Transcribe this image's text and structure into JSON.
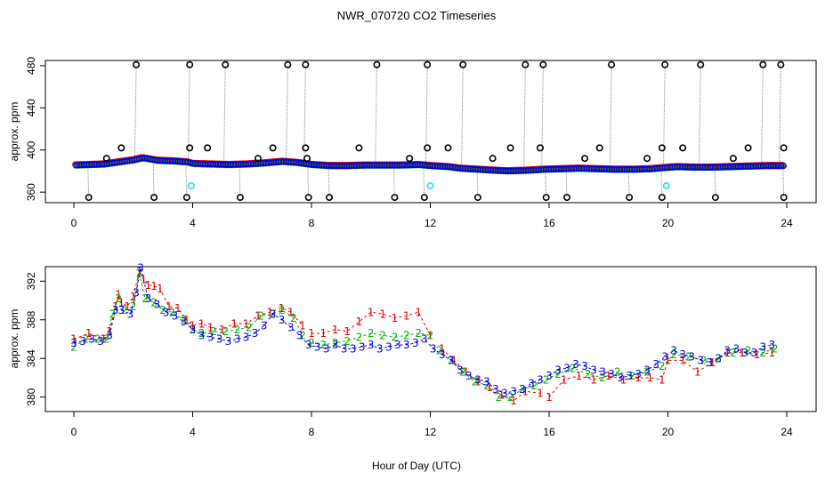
{
  "title": "NWR_070720  CO2 Timeseries",
  "xlabel": "Hour of Day (UTC)",
  "colors": {
    "frame": "#000000",
    "series1": "#e00000",
    "series2": "#00b000",
    "series3": "#0000e0",
    "outlier": "#000000",
    "flagged": "#00e0e0",
    "dropline": "#9a9a9a"
  },
  "chart_data": [
    {
      "type": "scatter",
      "panel": "top",
      "ylabel": "approx. ppm",
      "xlim": [
        0,
        24
      ],
      "ylim": [
        350,
        485
      ],
      "xticks": [
        0,
        4,
        8,
        12,
        16,
        20,
        24
      ],
      "yticks": [
        360,
        400,
        440,
        480
      ],
      "baseline": [
        [
          0.0,
          385.5
        ],
        [
          0.5,
          386
        ],
        [
          1.0,
          386.5
        ],
        [
          1.5,
          388.5
        ],
        [
          2.0,
          390.5
        ],
        [
          2.3,
          392.5
        ],
        [
          2.8,
          390
        ],
        [
          3.3,
          389.5
        ],
        [
          3.8,
          388.5
        ],
        [
          4.0,
          387
        ],
        [
          4.6,
          386.5
        ],
        [
          5.2,
          386
        ],
        [
          5.8,
          386.5
        ],
        [
          6.4,
          387.5
        ],
        [
          7.0,
          389
        ],
        [
          7.5,
          388
        ],
        [
          8.0,
          386
        ],
        [
          8.6,
          385
        ],
        [
          9.2,
          385
        ],
        [
          9.8,
          385.5
        ],
        [
          10.4,
          385.5
        ],
        [
          11.0,
          385.5
        ],
        [
          11.6,
          386
        ],
        [
          12.0,
          385
        ],
        [
          12.6,
          384
        ],
        [
          13.0,
          382.5
        ],
        [
          13.6,
          381.5
        ],
        [
          14.2,
          380.5
        ],
        [
          14.6,
          380
        ],
        [
          15.2,
          380.5
        ],
        [
          15.8,
          381.5
        ],
        [
          16.4,
          382
        ],
        [
          17.0,
          382.5
        ],
        [
          17.6,
          382
        ],
        [
          18.2,
          381.5
        ],
        [
          18.8,
          381.5
        ],
        [
          19.4,
          382
        ],
        [
          19.8,
          383
        ],
        [
          20.3,
          384
        ],
        [
          20.9,
          383.5
        ],
        [
          21.5,
          383.5
        ],
        [
          22.1,
          384
        ],
        [
          22.7,
          384.5
        ],
        [
          23.3,
          385
        ],
        [
          23.8,
          385
        ]
      ],
      "outliers_high": [
        2.1,
        3.9,
        5.1,
        7.2,
        7.8,
        10.2,
        11.9,
        13.1,
        15.2,
        15.8,
        18.1,
        19.9,
        21.1,
        23.2,
        23.8
      ],
      "outlier_high_value": 481,
      "outliers_low": [
        0.5,
        2.7,
        3.8,
        5.6,
        7.9,
        8.6,
        10.8,
        11.8,
        13.6,
        15.9,
        16.6,
        18.7,
        19.8,
        21.6,
        23.9
      ],
      "outlier_low_value": 355,
      "outliers_mid": [
        [
          1.1,
          392
        ],
        [
          1.6,
          402
        ],
        [
          3.9,
          402
        ],
        [
          4.5,
          402
        ],
        [
          6.2,
          392
        ],
        [
          6.7,
          402
        ],
        [
          7.8,
          402
        ],
        [
          7.85,
          392
        ],
        [
          9.6,
          402
        ],
        [
          11.3,
          392
        ],
        [
          11.9,
          402
        ],
        [
          12.6,
          402
        ],
        [
          14.1,
          392
        ],
        [
          14.7,
          402
        ],
        [
          15.7,
          402
        ],
        [
          17.2,
          392
        ],
        [
          17.7,
          402
        ],
        [
          19.3,
          392
        ],
        [
          19.8,
          402
        ],
        [
          20.5,
          402
        ],
        [
          22.2,
          392
        ],
        [
          22.7,
          402
        ],
        [
          23.9,
          402
        ]
      ],
      "flagged": [
        [
          3.95,
          366
        ],
        [
          12.0,
          366
        ],
        [
          19.95,
          366
        ]
      ]
    },
    {
      "type": "scatter",
      "panel": "bottom",
      "ylabel": "approx. ppm",
      "xlim": [
        0,
        24
      ],
      "ylim": [
        378.5,
        393.5
      ],
      "xticks": [
        0,
        4,
        8,
        12,
        16,
        20,
        24
      ],
      "yticks": [
        380,
        384,
        388,
        392
      ],
      "series": [
        {
          "name": "1",
          "marker": "1",
          "color": "series1",
          "gap_after": [
            7.7,
            12.0,
            15.7
          ],
          "x": [
            0.0,
            0.5,
            1.0,
            1.2,
            1.4,
            1.5,
            1.6,
            1.8,
            2.0,
            2.2,
            2.35,
            2.5,
            2.7,
            2.9,
            3.2,
            3.5,
            3.8,
            4.0,
            4.3,
            4.6,
            5.0,
            5.4,
            5.8,
            6.2,
            6.6,
            7.0,
            7.3,
            7.7,
            8.0,
            8.4,
            8.8,
            9.2,
            9.6,
            10.0,
            10.4,
            10.8,
            11.2,
            11.6,
            12.0,
            12.4,
            12.8,
            13.2,
            13.6,
            14.0,
            14.4,
            14.8,
            15.2,
            15.7,
            16.0,
            16.5,
            17.0,
            17.5,
            18.0,
            18.5,
            19.0,
            19.4,
            19.8,
            20.0,
            20.5,
            21.0,
            21.5,
            22.0,
            22.5,
            23.0,
            23.5
          ],
          "y": [
            386.0,
            386.6,
            386.0,
            386.8,
            389.4,
            390.6,
            389.8,
            389.4,
            390.4,
            393.0,
            392.2,
            391.6,
            391.5,
            391.2,
            389.4,
            389.2,
            388.0,
            387.4,
            387.6,
            387.2,
            387.0,
            387.6,
            387.6,
            388.4,
            388.8,
            389.2,
            388.8,
            387.4,
            386.6,
            386.6,
            387.0,
            386.8,
            387.8,
            388.8,
            388.6,
            388.2,
            388.4,
            388.8,
            386.4,
            385.0,
            383.8,
            382.6,
            381.6,
            381.0,
            380.2,
            379.6,
            380.6,
            380.4,
            380.0,
            381.8,
            382.2,
            381.8,
            382.2,
            381.8,
            382.0,
            382.0,
            381.8,
            383.8,
            383.8,
            382.6,
            383.6,
            384.6,
            384.6,
            384.4,
            384.6
          ]
        },
        {
          "name": "2",
          "marker": "2",
          "color": "series2",
          "gap_after": [
            7.7,
            12.0,
            15.7
          ],
          "x": [
            0.0,
            0.4,
            0.8,
            1.1,
            1.3,
            1.5,
            1.7,
            2.0,
            2.2,
            2.4,
            2.7,
            3.0,
            3.3,
            3.7,
            4.0,
            4.3,
            4.7,
            5.1,
            5.5,
            5.9,
            6.3,
            6.7,
            7.0,
            7.4,
            7.7,
            8.0,
            8.4,
            8.8,
            9.2,
            9.6,
            10.0,
            10.4,
            10.8,
            11.2,
            11.6,
            12.0,
            12.3,
            12.7,
            13.1,
            13.5,
            13.9,
            14.3,
            14.7,
            15.1,
            15.5,
            15.9,
            16.3,
            16.8,
            17.3,
            17.8,
            18.3,
            18.8,
            19.3,
            19.8,
            20.2,
            20.7,
            21.2,
            21.7,
            22.2,
            22.7,
            23.2,
            23.6
          ],
          "y": [
            385.2,
            386.0,
            386.0,
            386.0,
            388.6,
            390.2,
            389.0,
            389.4,
            392.8,
            390.2,
            389.8,
            389.0,
            388.8,
            388.0,
            387.0,
            386.6,
            386.8,
            386.8,
            387.0,
            387.2,
            388.4,
            388.6,
            389.0,
            388.2,
            386.4,
            385.6,
            385.4,
            385.6,
            385.8,
            386.2,
            386.6,
            386.4,
            386.2,
            386.4,
            386.6,
            386.4,
            384.8,
            383.8,
            382.6,
            381.6,
            381.2,
            380.0,
            380.0,
            380.8,
            381.2,
            381.8,
            382.4,
            383.0,
            382.4,
            382.0,
            382.6,
            382.2,
            382.6,
            383.2,
            384.4,
            384.2,
            383.8,
            384.0,
            384.6,
            384.8,
            384.6,
            385.0
          ]
        },
        {
          "name": "3",
          "marker": "3",
          "color": "series3",
          "gap_after": [
            7.7,
            12.0,
            15.7
          ],
          "x": [
            0.0,
            0.3,
            0.6,
            0.9,
            1.2,
            1.4,
            1.6,
            1.9,
            2.1,
            2.25,
            2.5,
            2.8,
            3.1,
            3.4,
            3.7,
            4.0,
            4.3,
            4.6,
            4.9,
            5.2,
            5.5,
            5.8,
            6.1,
            6.4,
            6.7,
            7.0,
            7.3,
            7.6,
            7.9,
            8.2,
            8.5,
            8.8,
            9.1,
            9.4,
            9.7,
            10.0,
            10.3,
            10.6,
            10.9,
            11.2,
            11.5,
            11.8,
            12.1,
            12.4,
            12.7,
            13.0,
            13.3,
            13.6,
            13.9,
            14.2,
            14.5,
            14.8,
            15.1,
            15.4,
            15.7,
            16.0,
            16.3,
            16.6,
            16.9,
            17.2,
            17.5,
            17.8,
            18.1,
            18.4,
            18.7,
            19.0,
            19.3,
            19.6,
            19.9,
            20.2,
            20.5,
            20.8,
            21.1,
            21.4,
            21.7,
            22.0,
            22.3,
            22.6,
            22.9,
            23.2,
            23.5
          ],
          "y": [
            385.6,
            385.8,
            386.0,
            385.8,
            386.4,
            389.0,
            389.0,
            388.6,
            390.8,
            393.4,
            390.2,
            389.6,
            388.8,
            388.4,
            387.8,
            387.0,
            386.4,
            386.2,
            386.0,
            385.8,
            386.0,
            386.2,
            386.6,
            387.4,
            388.6,
            388.0,
            387.2,
            386.4,
            385.4,
            385.2,
            385.0,
            385.4,
            385.0,
            385.0,
            385.2,
            385.4,
            385.0,
            385.2,
            385.4,
            385.4,
            385.6,
            386.0,
            385.0,
            384.4,
            383.8,
            382.8,
            382.2,
            381.8,
            381.6,
            380.8,
            380.4,
            380.6,
            380.8,
            381.4,
            381.8,
            382.2,
            382.8,
            383.0,
            383.4,
            383.2,
            382.8,
            382.6,
            382.4,
            382.0,
            382.2,
            382.4,
            382.8,
            383.4,
            384.2,
            384.8,
            384.4,
            384.2,
            383.8,
            383.6,
            384.0,
            384.8,
            385.0,
            384.6,
            384.6,
            385.2,
            385.4
          ]
        }
      ]
    }
  ]
}
